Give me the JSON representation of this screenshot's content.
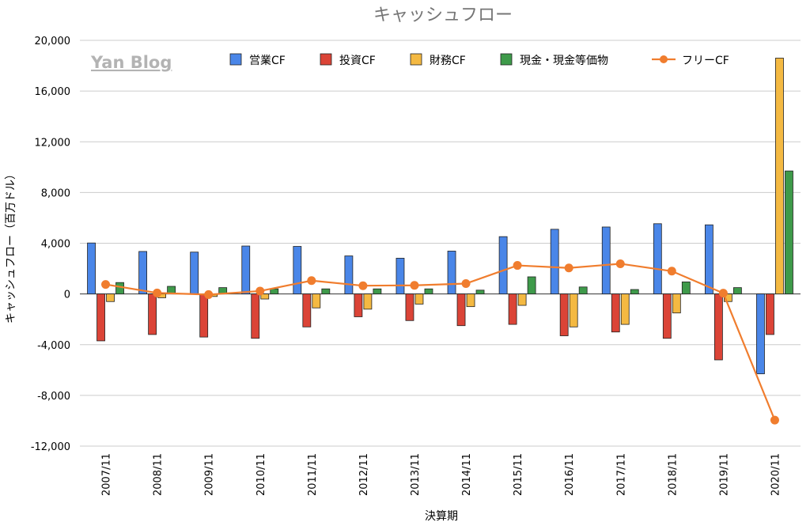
{
  "chart_data": {
    "type": "bar",
    "title": "キャッシュフロー",
    "watermark": "Yan Blog",
    "xlabel": "決算期",
    "ylabel": "キャッシュフロー（百万ドル）",
    "ylim": [
      -12000,
      20000
    ],
    "yticks": [
      -12000,
      -8000,
      -4000,
      0,
      4000,
      8000,
      12000,
      16000,
      20000
    ],
    "ytick_labels": [
      "-12,000",
      "-8,000",
      "-4,000",
      "0",
      "4,000",
      "8,000",
      "12,000",
      "16,000",
      "20,000"
    ],
    "grid": true,
    "legend_position": "top",
    "categories": [
      "2007/11",
      "2008/11",
      "2009/11",
      "2010/11",
      "2011/11",
      "2012/11",
      "2013/11",
      "2014/11",
      "2015/11",
      "2016/11",
      "2017/11",
      "2018/11",
      "2019/11",
      "2020/11"
    ],
    "series": [
      {
        "name": "営業CF",
        "kind": "bar",
        "color": "#4a86e8",
        "values": [
          4020,
          3350,
          3300,
          3780,
          3750,
          3000,
          2820,
          3380,
          4520,
          5100,
          5280,
          5540,
          5450,
          -6300
        ]
      },
      {
        "name": "投資CF",
        "kind": "bar",
        "color": "#db4437",
        "values": [
          -3700,
          -3200,
          -3400,
          -3500,
          -2600,
          -1800,
          -2100,
          -2500,
          -2400,
          -3300,
          -3000,
          -3500,
          -5200,
          -3200
        ]
      },
      {
        "name": "財務CF",
        "kind": "bar",
        "color": "#f4b942",
        "values": [
          -600,
          -300,
          -200,
          -400,
          -1100,
          -1200,
          -800,
          -1000,
          -900,
          -2600,
          -2400,
          -1500,
          -600,
          18600
        ]
      },
      {
        "name": "現金・現金等価物",
        "kind": "bar",
        "color": "#3e9a4a",
        "values": [
          900,
          600,
          500,
          400,
          400,
          400,
          400,
          300,
          1350,
          550,
          350,
          950,
          500,
          9700
        ]
      },
      {
        "name": "フリーCF",
        "kind": "line",
        "color": "#f07d2e",
        "values": [
          750,
          80,
          -50,
          230,
          1050,
          650,
          680,
          820,
          2250,
          2050,
          2380,
          1800,
          60,
          -9950
        ]
      }
    ]
  }
}
